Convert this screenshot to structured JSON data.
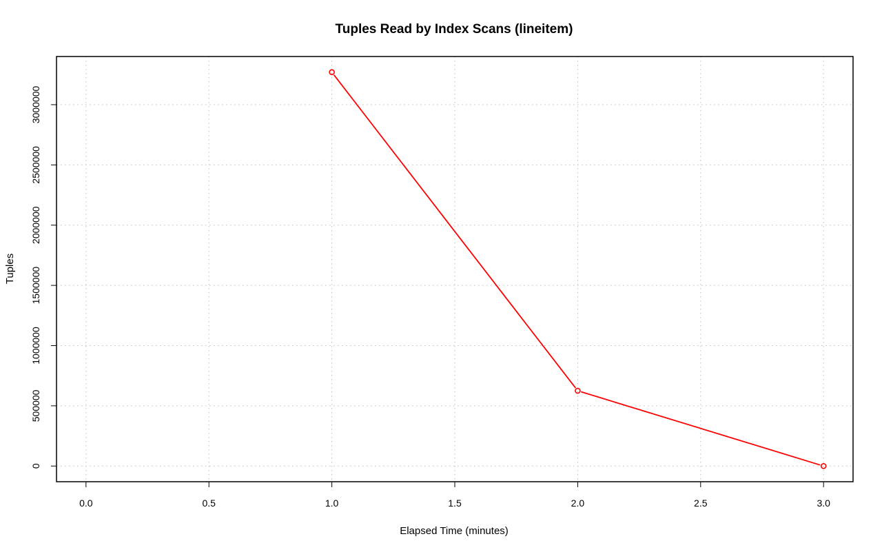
{
  "chart_data": {
    "type": "line",
    "title": "Tuples Read by Index Scans (lineitem)",
    "xlabel": "Elapsed Time (minutes)",
    "ylabel": "Tuples",
    "xlim": [
      -0.12,
      3.12
    ],
    "ylim": [
      -130000,
      3400000
    ],
    "x_ticks": [
      0.0,
      0.5,
      1.0,
      1.5,
      2.0,
      2.5,
      3.0
    ],
    "x_tick_labels": [
      "0.0",
      "0.5",
      "1.0",
      "1.5",
      "2.0",
      "2.5",
      "3.0"
    ],
    "y_ticks": [
      0,
      500000,
      1000000,
      1500000,
      2000000,
      2500000,
      3000000
    ],
    "y_tick_labels": [
      "0",
      "500000",
      "1000000",
      "1500000",
      "2000000",
      "2500000",
      "3000000"
    ],
    "grid": true,
    "series": [
      {
        "color": "#ff0000",
        "points": [
          {
            "x": 1.0,
            "y": 3270000
          },
          {
            "x": 2.0,
            "y": 625000
          },
          {
            "x": 3.0,
            "y": 0
          }
        ]
      }
    ]
  }
}
